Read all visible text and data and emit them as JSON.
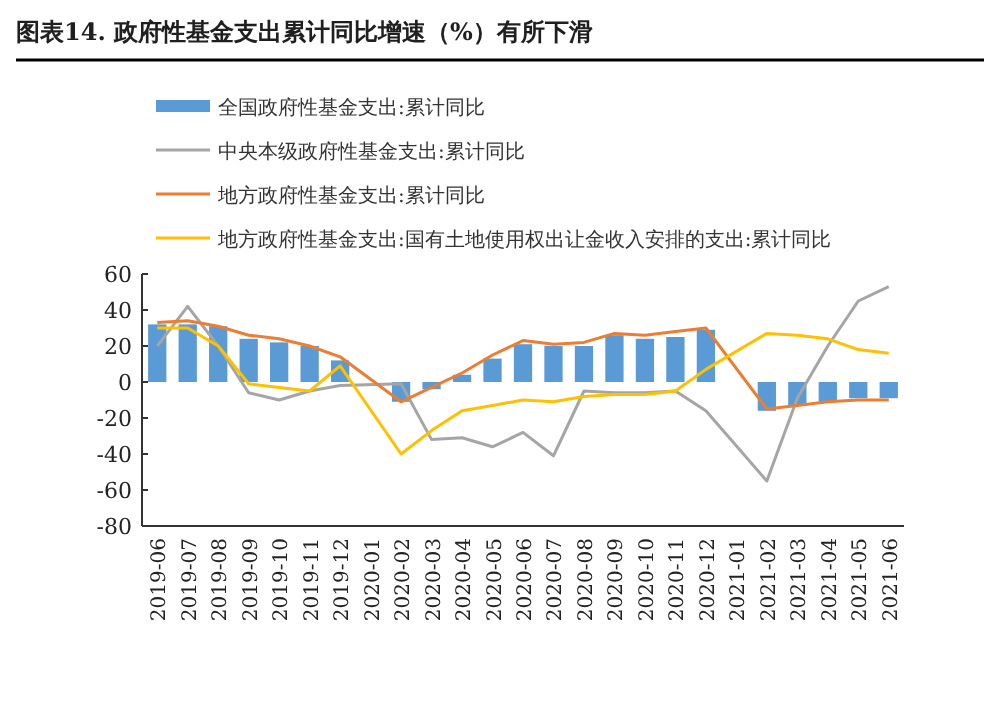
{
  "chart_data": {
    "type": "bar",
    "title": "图表14. 政府性基金支出累计同比增速（%）有所下滑",
    "categories": [
      "2019-06",
      "2019-07",
      "2019-08",
      "2019-09",
      "2019-10",
      "2019-11",
      "2019-12",
      "2020-01",
      "2020-02",
      "2020-03",
      "2020-04",
      "2020-05",
      "2020-06",
      "2020-07",
      "2020-08",
      "2020-09",
      "2020-10",
      "2020-11",
      "2020-12",
      "2021-01",
      "2021-02",
      "2021-03",
      "2021-04",
      "2021-05",
      "2021-06"
    ],
    "series": [
      {
        "name": "全国政府性基金支出:累计同比",
        "color": "#5b9bd5",
        "values": [
          32,
          32,
          31,
          24,
          22,
          20,
          12,
          null,
          -11,
          -4,
          4,
          13,
          21,
          20,
          20,
          26,
          24,
          25,
          29,
          null,
          -16,
          -13,
          -11,
          -9,
          -9
        ]
      },
      {
        "name": "中央本级政府性基金支出:累计同比",
        "type": "line",
        "color": "#a5a5a5",
        "values": [
          20,
          42,
          20,
          -6,
          -10,
          -5,
          -2,
          null,
          -1,
          -32,
          -31,
          -36,
          -28,
          -41,
          -5,
          -6,
          -6,
          -5,
          -16,
          null,
          -55,
          -9,
          20,
          45,
          53
        ]
      },
      {
        "name": "地方政府性基金支出:累计同比",
        "type": "line",
        "color": "#ed7d31",
        "values": [
          33,
          34,
          31,
          26,
          24,
          20,
          14,
          null,
          -11,
          -3,
          5,
          15,
          23,
          21,
          22,
          27,
          26,
          28,
          30,
          null,
          -15,
          -13,
          -11,
          -10,
          -10
        ]
      },
      {
        "name": "地方政府性基金支出:国有土地使用权出让金收入安排的支出:累计同比",
        "type": "line",
        "color": "#ffc000",
        "values": [
          30,
          30,
          20,
          -1,
          -3,
          -5,
          9,
          null,
          -40,
          -27,
          -16,
          -13,
          -10,
          -11,
          -8,
          -7,
          -7,
          -5,
          7,
          null,
          27,
          26,
          24,
          18,
          16
        ]
      }
    ],
    "ylim": [
      -80,
      60
    ],
    "yticks": [
      -80,
      -60,
      -40,
      -20,
      0,
      20,
      40,
      60
    ],
    "grid": false,
    "legend": "top"
  }
}
